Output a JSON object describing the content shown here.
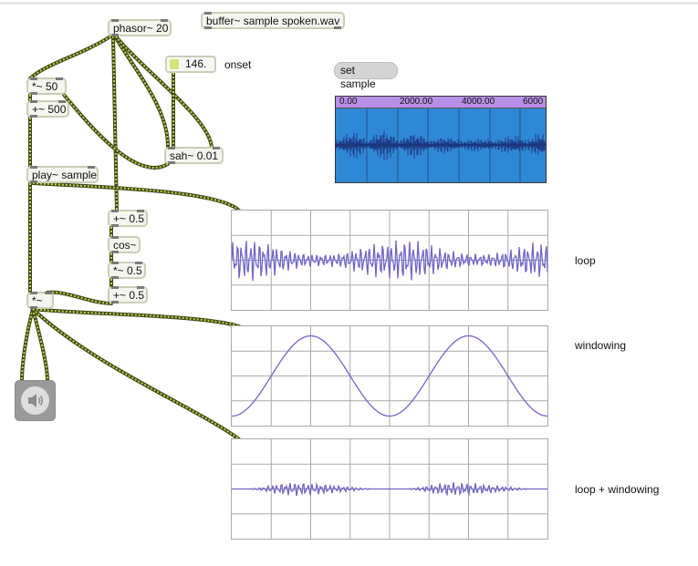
{
  "objects": {
    "phasor": "phasor~ 20",
    "buffer": "buffer~ sample spoken.wav",
    "mul50": "*~ 50",
    "add500": "+~ 500",
    "sah": "sah~ 0.01",
    "play": "play~ sample",
    "add05a": "+~ 0.5",
    "cos": "cos~",
    "mul05": "*~ 0.5",
    "add05b": "+~ 0.5",
    "mul": "*~"
  },
  "number_box": {
    "value": "146."
  },
  "message_box": {
    "label": "set sample"
  },
  "comments": {
    "onset": "onset",
    "loop": "loop",
    "windowing": "windowing",
    "loop_windowing": "loop + windowing"
  },
  "waveform": {
    "ruler_labels": [
      "0.00",
      "2000.00",
      "4000.00",
      "6000"
    ],
    "background_color": "#2f88d6",
    "ruler_color": "#b88fe6",
    "wave_color": "#1f3c88"
  },
  "colors": {
    "patchcord": "#c7d24a",
    "patchcord_dark": "#3b4a1a",
    "scope_line": "#6e66c8",
    "grid": "#a9a9a9"
  },
  "icons": {
    "ezdac": "speaker-icon"
  }
}
